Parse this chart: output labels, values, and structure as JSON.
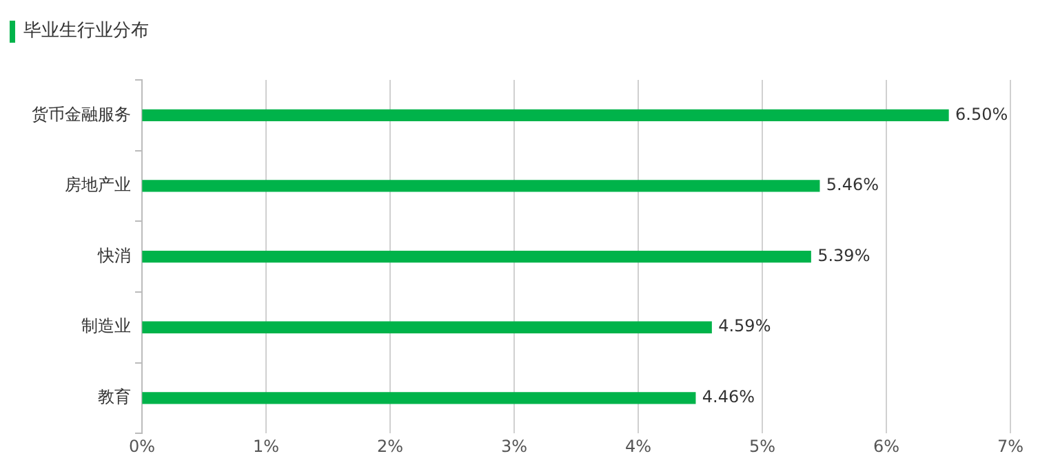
{
  "chart_data": {
    "type": "bar",
    "orientation": "horizontal",
    "title": "毕业生行业分布",
    "categories": [
      "货币金融服务",
      "房地产业",
      "快消",
      "制造业",
      "教育"
    ],
    "values": [
      6.5,
      5.46,
      5.39,
      4.59,
      4.46
    ],
    "value_labels": [
      "6.50%",
      "5.46%",
      "5.39%",
      "4.59%",
      "4.46%"
    ],
    "color": "#00b34a",
    "xlim": [
      0,
      7
    ],
    "xticks": [
      {
        "value": 0,
        "label": "0%"
      },
      {
        "value": 1,
        "label": "1%"
      },
      {
        "value": 2,
        "label": "2%"
      },
      {
        "value": 3,
        "label": "3%"
      },
      {
        "value": 4,
        "label": "4%"
      },
      {
        "value": 5,
        "label": "5%"
      },
      {
        "value": 6,
        "label": "6%"
      },
      {
        "value": 7,
        "label": "7%"
      }
    ],
    "grid": "x",
    "legend": false
  }
}
